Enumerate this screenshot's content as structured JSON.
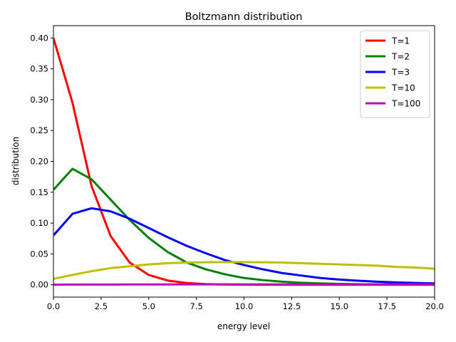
{
  "chart_data": {
    "type": "line",
    "title": "Boltzmann distribution",
    "xlabel": "energy level",
    "ylabel": "distribution",
    "xlim": [
      0,
      20
    ],
    "ylim": [
      -0.02,
      0.42
    ],
    "xticks": [
      0,
      2.5,
      5,
      7.5,
      10,
      12.5,
      15,
      17.5,
      20
    ],
    "xtick_labels": [
      "0.0",
      "2.5",
      "5.0",
      "7.5",
      "10.0",
      "12.5",
      "15.0",
      "17.5",
      "20.0"
    ],
    "yticks": [
      0,
      0.05,
      0.1,
      0.15,
      0.2,
      0.25,
      0.3,
      0.35,
      0.4
    ],
    "ytick_labels": [
      "0.00",
      "0.05",
      "0.10",
      "0.15",
      "0.20",
      "0.25",
      "0.30",
      "0.35",
      "0.40"
    ],
    "grid": false,
    "legend_position": "top-right",
    "x": [
      0,
      1,
      2,
      3,
      4,
      5,
      6,
      7,
      8,
      9,
      10,
      11,
      12,
      13,
      14,
      15,
      16,
      17,
      18,
      19,
      20
    ],
    "series": [
      {
        "name": "T=1",
        "color": "#ff0000",
        "values": [
          0.4,
          0.295,
          0.16,
          0.079,
          0.036,
          0.016,
          0.0068,
          0.0028,
          0.0011,
          0.0004,
          0.0002,
          0.0001,
          0,
          0,
          0,
          0,
          0,
          0,
          0,
          0,
          0
        ]
      },
      {
        "name": "T=2",
        "color": "#008000",
        "values": [
          0.154,
          0.188,
          0.171,
          0.138,
          0.105,
          0.076,
          0.053,
          0.036,
          0.025,
          0.017,
          0.011,
          0.0075,
          0.005,
          0.0033,
          0.0022,
          0.0014,
          0.0009,
          0.0006,
          0.0004,
          0.0003,
          0.0002
        ]
      },
      {
        "name": "T=3",
        "color": "#0000ff",
        "values": [
          0.08,
          0.115,
          0.124,
          0.119,
          0.107,
          0.092,
          0.077,
          0.063,
          0.051,
          0.04,
          0.032,
          0.025,
          0.019,
          0.015,
          0.011,
          0.0085,
          0.0065,
          0.005,
          0.0038,
          0.0029,
          0.0022
        ]
      },
      {
        "name": "T=10",
        "color": "#bfbf00",
        "values": [
          0.0095,
          0.016,
          0.022,
          0.027,
          0.03,
          0.033,
          0.035,
          0.036,
          0.0365,
          0.0368,
          0.0368,
          0.0365,
          0.036,
          0.035,
          0.034,
          0.033,
          0.032,
          0.031,
          0.029,
          0.028,
          0.026
        ]
      },
      {
        "name": "T=100",
        "color": "#bf00bf",
        "values": [
          0.0002,
          0.0003,
          0.0004,
          0.0004,
          0.0005,
          0.0005,
          0.0005,
          0.0006,
          0.0006,
          0.0006,
          0.0006,
          0.0007,
          0.0007,
          0.0007,
          0.0007,
          0.0007,
          0.0007,
          0.0008,
          0.0008,
          0.0008,
          0.0008
        ]
      }
    ]
  }
}
